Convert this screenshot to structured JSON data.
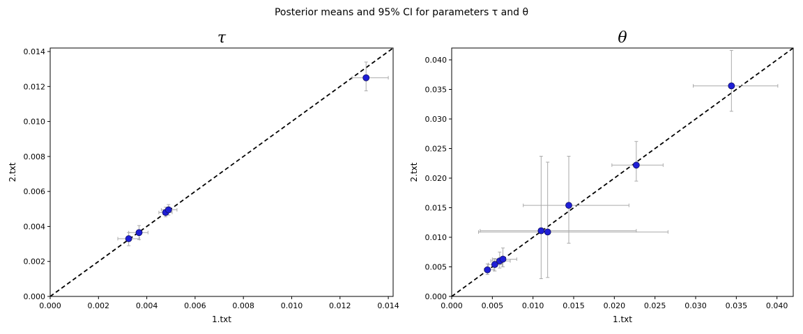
{
  "figure": {
    "suptitle": "Posterior means and 95% CI for parameters τ and θ"
  },
  "chart_data": [
    {
      "type": "scatter",
      "title": "τ",
      "xlabel": "1.txt",
      "ylabel": "2.txt",
      "xlim": [
        0,
        0.0142
      ],
      "ylim": [
        0,
        0.0142
      ],
      "xticks": [
        "0.000",
        "0.002",
        "0.004",
        "0.006",
        "0.008",
        "0.010",
        "0.012",
        "0.014"
      ],
      "yticks": [
        "0.000",
        "0.002",
        "0.004",
        "0.006",
        "0.008",
        "0.010",
        "0.012",
        "0.014"
      ],
      "reference_line": "y = x (dashed)",
      "point_color": "#1f1fd6",
      "errorbar_color": "#aaaaaa",
      "points": [
        {
          "x": 0.00325,
          "y": 0.0033,
          "x_ci": [
            0.0028,
            0.0037
          ],
          "y_ci": [
            0.0029,
            0.00365
          ]
        },
        {
          "x": 0.00368,
          "y": 0.00365,
          "x_ci": [
            0.00325,
            0.00405
          ],
          "y_ci": [
            0.00325,
            0.00405
          ]
        },
        {
          "x": 0.00478,
          "y": 0.0048,
          "x_ci": [
            0.0045,
            0.00505
          ],
          "y_ci": [
            0.00455,
            0.0051
          ]
        },
        {
          "x": 0.0049,
          "y": 0.00495,
          "x_ci": [
            0.0046,
            0.00525
          ],
          "y_ci": [
            0.00465,
            0.00525
          ]
        },
        {
          "x": 0.01308,
          "y": 0.0125,
          "x_ci": [
            0.0125,
            0.014
          ],
          "y_ci": [
            0.01175,
            0.0134
          ]
        }
      ]
    },
    {
      "type": "scatter",
      "title": "θ",
      "xlabel": "1.txt",
      "ylabel": "2.txt",
      "xlim": [
        0,
        0.042
      ],
      "ylim": [
        0,
        0.042
      ],
      "xticks": [
        "0.000",
        "0.005",
        "0.010",
        "0.015",
        "0.020",
        "0.025",
        "0.030",
        "0.035",
        "0.040"
      ],
      "yticks": [
        "0.000",
        "0.005",
        "0.010",
        "0.015",
        "0.020",
        "0.025",
        "0.030",
        "0.035",
        "0.040"
      ],
      "reference_line": "y = x (dashed)",
      "point_color": "#1f1fd6",
      "errorbar_color": "#aaaaaa",
      "points": [
        {
          "x": 0.0044,
          "y": 0.0045,
          "x_ci": [
            0.004,
            0.0052
          ],
          "y_ci": [
            0.0037,
            0.0055
          ]
        },
        {
          "x": 0.0053,
          "y": 0.0054,
          "x_ci": [
            0.0045,
            0.0062
          ],
          "y_ci": [
            0.0043,
            0.0064
          ]
        },
        {
          "x": 0.0059,
          "y": 0.006,
          "x_ci": [
            0.0048,
            0.0072
          ],
          "y_ci": [
            0.0048,
            0.0075
          ]
        },
        {
          "x": 0.0063,
          "y": 0.0063,
          "x_ci": [
            0.005,
            0.008
          ],
          "y_ci": [
            0.005,
            0.0082
          ]
        },
        {
          "x": 0.011,
          "y": 0.0111,
          "x_ci": [
            0.0035,
            0.0227
          ],
          "y_ci": [
            0.003,
            0.0237
          ]
        },
        {
          "x": 0.0118,
          "y": 0.0109,
          "x_ci": [
            0.0033,
            0.0266
          ],
          "y_ci": [
            0.0032,
            0.0227
          ]
        },
        {
          "x": 0.0144,
          "y": 0.0154,
          "x_ci": [
            0.0088,
            0.0218
          ],
          "y_ci": [
            0.009,
            0.0237
          ]
        },
        {
          "x": 0.0227,
          "y": 0.0222,
          "x_ci": [
            0.0197,
            0.026
          ],
          "y_ci": [
            0.0195,
            0.0262
          ]
        },
        {
          "x": 0.0344,
          "y": 0.0356,
          "x_ci": [
            0.0297,
            0.0401
          ],
          "y_ci": [
            0.0313,
            0.0416
          ]
        }
      ]
    }
  ]
}
